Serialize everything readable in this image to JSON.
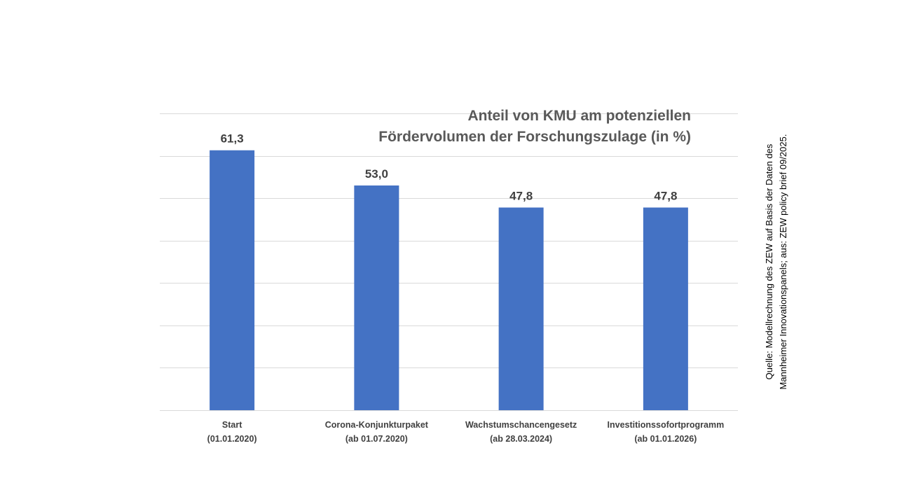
{
  "chart_data": {
    "type": "bar",
    "title": [
      "Anteil von KMU am potenziellen",
      "Fördervolumen der Forschungszulage (in %)"
    ],
    "categories": [
      [
        "Start",
        "(01.01.2020)"
      ],
      [
        "Corona-Konjunkturpaket",
        "(ab 01.07.2020)"
      ],
      [
        "Wachstumschancengesetz",
        "(ab 28.03.2024)"
      ],
      [
        "Investitionssofortprogramm",
        "(ab 01.01.2026)"
      ]
    ],
    "values": [
      61.3,
      53.0,
      47.8,
      47.8
    ],
    "value_labels": [
      "61,3",
      "53,0",
      "47,8",
      "47,8"
    ],
    "ylim": [
      0,
      70
    ],
    "gridline_step": 10,
    "y_tick_labels_shown": false,
    "grid": true,
    "legend": "none",
    "bar_color": "#4472C4"
  },
  "source": {
    "lines": [
      "Quelle: Modellrechnung des ZEW auf Basis der Daten des",
      "Mannheimer Innovationspanels; aus: ZEW policy brief 09/2025."
    ]
  }
}
